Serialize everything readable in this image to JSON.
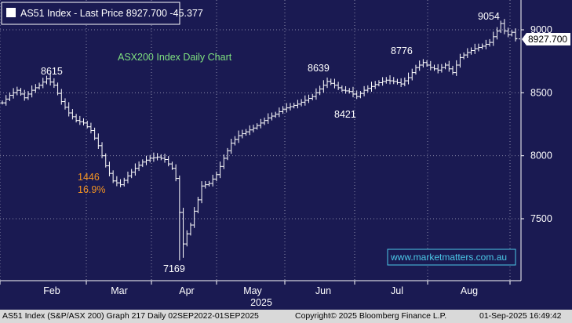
{
  "header": {
    "title": "AS51 Index - Last Price 8927.700 -45.377"
  },
  "chart_data": {
    "type": "ohlc",
    "title": "ASX200 Index Daily Chart",
    "watermark": "www.marketmatters.com.au",
    "y_ticks": [
      "9000",
      "8500",
      "8000",
      "7500"
    ],
    "ylim": [
      7050,
      9150
    ],
    "x_month_labels": [
      "Feb",
      "Mar",
      "Apr",
      "May",
      "Jun",
      "Jul",
      "Aug"
    ],
    "x_year_label": "2025",
    "last_price_label": "8927.700",
    "last_price": 8927.7,
    "annotations": [
      {
        "text": "8615",
        "kind": "high"
      },
      {
        "text": "1446",
        "kind": "drop"
      },
      {
        "text": "16.9%",
        "kind": "drop"
      },
      {
        "text": "7169",
        "kind": "low"
      },
      {
        "text": "8639",
        "kind": "high"
      },
      {
        "text": "8421",
        "kind": "low"
      },
      {
        "text": "8776",
        "kind": "high"
      },
      {
        "text": "9054",
        "kind": "high"
      }
    ],
    "close_path": [
      [
        0,
        8420
      ],
      [
        2,
        8480
      ],
      [
        4,
        8520
      ],
      [
        6,
        8460
      ],
      [
        8,
        8520
      ],
      [
        10,
        8560
      ],
      [
        12,
        8610
      ],
      [
        14,
        8560
      ],
      [
        16,
        8430
      ],
      [
        18,
        8340
      ],
      [
        20,
        8280
      ],
      [
        22,
        8260
      ],
      [
        24,
        8200
      ],
      [
        26,
        8080
      ],
      [
        28,
        7920
      ],
      [
        30,
        7800
      ],
      [
        32,
        7770
      ],
      [
        34,
        7840
      ],
      [
        36,
        7900
      ],
      [
        38,
        7950
      ],
      [
        40,
        7980
      ],
      [
        42,
        7990
      ],
      [
        44,
        7970
      ],
      [
        46,
        7900
      ],
      [
        47,
        7820
      ],
      [
        48,
        7550
      ],
      [
        49,
        7300
      ],
      [
        50,
        7380
      ],
      [
        51,
        7450
      ],
      [
        52,
        7560
      ],
      [
        53,
        7650
      ],
      [
        54,
        7760
      ],
      [
        56,
        7780
      ],
      [
        58,
        7850
      ],
      [
        60,
        7980
      ],
      [
        62,
        8100
      ],
      [
        64,
        8160
      ],
      [
        66,
        8190
      ],
      [
        68,
        8220
      ],
      [
        70,
        8260
      ],
      [
        72,
        8300
      ],
      [
        74,
        8330
      ],
      [
        76,
        8370
      ],
      [
        78,
        8390
      ],
      [
        80,
        8410
      ],
      [
        82,
        8440
      ],
      [
        84,
        8470
      ],
      [
        86,
        8530
      ],
      [
        88,
        8590
      ],
      [
        90,
        8560
      ],
      [
        92,
        8520
      ],
      [
        94,
        8510
      ],
      [
        96,
        8470
      ],
      [
        98,
        8520
      ],
      [
        100,
        8550
      ],
      [
        102,
        8580
      ],
      [
        104,
        8600
      ],
      [
        106,
        8590
      ],
      [
        108,
        8570
      ],
      [
        110,
        8620
      ],
      [
        112,
        8700
      ],
      [
        114,
        8740
      ],
      [
        116,
        8700
      ],
      [
        118,
        8680
      ],
      [
        120,
        8720
      ],
      [
        122,
        8660
      ],
      [
        124,
        8780
      ],
      [
        126,
        8820
      ],
      [
        128,
        8850
      ],
      [
        130,
        8870
      ],
      [
        132,
        8900
      ],
      [
        134,
        8990
      ],
      [
        135,
        9050
      ],
      [
        136,
        8990
      ],
      [
        137,
        8960
      ],
      [
        138,
        8980
      ],
      [
        139,
        8930
      ]
    ]
  },
  "footer": {
    "left": "AS51 Index (S&P/ASX 200) Graph 217  Daily 02SEP2022-01SEP2025",
    "center": "Copyright© 2025 Bloomberg Finance L.P.",
    "right": "01-Sep-2025 16:49:42"
  }
}
